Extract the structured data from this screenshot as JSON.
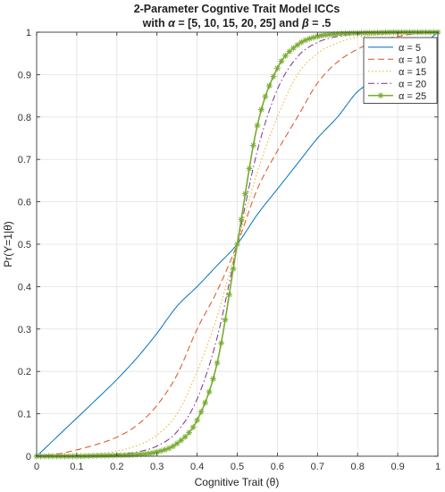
{
  "chart_data": {
    "type": "line",
    "title_line1": "2-Parameter Cogntive Trait Model ICCs",
    "title_line2_prefix": "with ",
    "title_line2_alpha": "α",
    "title_line2_mid": " = [5, 10, 15, 20, 25] and ",
    "title_line2_beta": "β",
    "title_line2_suffix": " = .5",
    "xlabel": "Cognitive Trait (θ)",
    "ylabel": "Pr(Y=1|θ)",
    "xlim": [
      0,
      1
    ],
    "ylim": [
      0,
      1
    ],
    "grid": true,
    "legend_position": "top-right",
    "x_ticks": [
      "0",
      "0.1",
      "0.2",
      "0.3",
      "0.4",
      "0.5",
      "0.6",
      "0.7",
      "0.8",
      "0.9",
      "1"
    ],
    "y_ticks": [
      "0",
      "0.1",
      "0.2",
      "0.3",
      "0.4",
      "0.5",
      "0.6",
      "0.7",
      "0.8",
      "0.9",
      "1"
    ],
    "x": [
      0,
      0.05,
      0.1,
      0.15,
      0.2,
      0.25,
      0.3,
      0.35,
      0.4,
      0.45,
      0.5,
      0.55,
      0.6,
      0.65,
      0.7,
      0.75,
      0.8,
      0.85,
      0.9,
      0.95,
      1
    ],
    "series": [
      {
        "name": "α = 5",
        "color": "#0072BD",
        "dash": "solid",
        "marker": "none",
        "values": [
          0.0,
          0.045,
          0.09,
          0.135,
          0.181,
          0.232,
          0.29,
          0.354,
          0.4,
          0.45,
          0.5,
          0.57,
          0.63,
          0.69,
          0.75,
          0.8,
          0.86,
          0.89,
          0.93,
          0.96,
          1.0
        ]
      },
      {
        "name": "α = 10",
        "color": "#D95319",
        "dash": "dashed",
        "marker": "none",
        "values": [
          0.0,
          0.005,
          0.015,
          0.028,
          0.045,
          0.073,
          0.12,
          0.192,
          0.3,
          0.39,
          0.5,
          0.63,
          0.72,
          0.8,
          0.88,
          0.93,
          0.96,
          0.98,
          0.99,
          0.997,
          1.0
        ]
      },
      {
        "name": "α = 15",
        "color": "#EDB120",
        "dash": "dotted",
        "marker": "none",
        "values": [
          0.0,
          0.001,
          0.003,
          0.006,
          0.012,
          0.025,
          0.05,
          0.1,
          0.2,
          0.33,
          0.5,
          0.67,
          0.8,
          0.9,
          0.95,
          0.975,
          0.988,
          0.994,
          0.997,
          0.999,
          1.0
        ]
      },
      {
        "name": "α = 20",
        "color": "#7E2F8E",
        "dash": "dashdot",
        "marker": "none",
        "values": [
          0.0,
          0.0,
          0.001,
          0.002,
          0.004,
          0.01,
          0.024,
          0.058,
          0.135,
          0.28,
          0.5,
          0.72,
          0.865,
          0.942,
          0.976,
          0.99,
          0.996,
          0.998,
          0.999,
          1.0,
          1.0
        ]
      },
      {
        "name": "α = 25",
        "color": "#77AC30",
        "dash": "solid",
        "marker": "star",
        "values": [
          0.0,
          0.0,
          0.0,
          0.001,
          0.002,
          0.004,
          0.01,
          0.03,
          0.085,
          0.22,
          0.5,
          0.78,
          0.915,
          0.97,
          0.99,
          0.996,
          0.998,
          0.999,
          1.0,
          1.0,
          1.0
        ]
      }
    ]
  }
}
